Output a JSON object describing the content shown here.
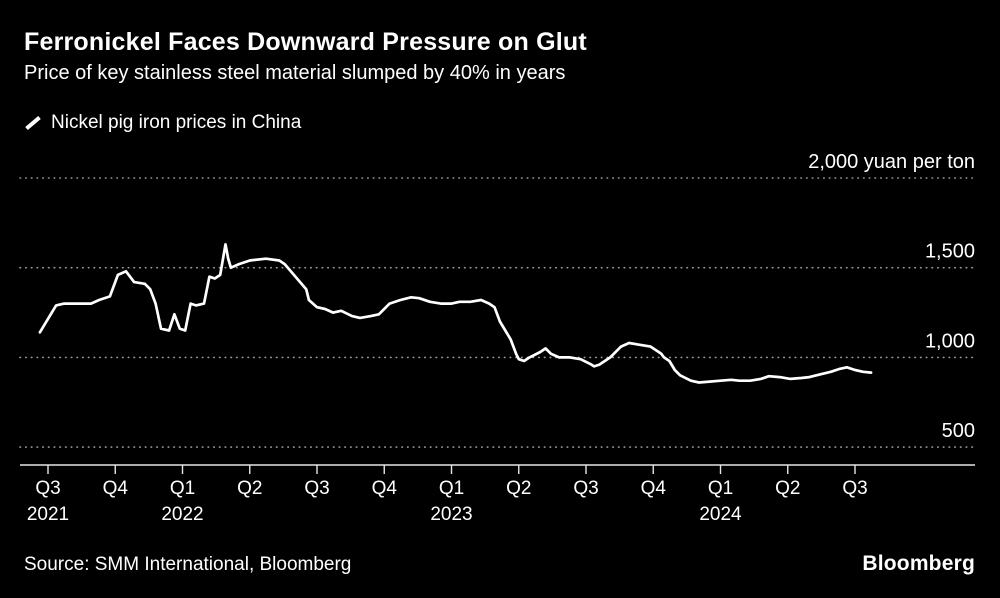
{
  "header": {
    "title": "Ferronickel Faces Downward Pressure on Glut",
    "subtitle": "Price of key stainless steel material slumped by 40% in years"
  },
  "legend": {
    "label": "Nickel pig iron prices in China"
  },
  "chart_data": {
    "type": "line",
    "title": "Ferronickel Faces Downward Pressure on Glut",
    "ylabel": "yuan per ton",
    "line_color": "#ffffff",
    "background": "#000000",
    "grid": "dotted horizontal",
    "xlim": [
      2021.42,
      2024.62
    ],
    "ylim": [
      500,
      2000
    ],
    "y_gridlines": [
      {
        "value": 2000,
        "label": "2,000 yuan per ton"
      },
      {
        "value": 1500,
        "label": "1,500"
      },
      {
        "value": 1000,
        "label": "1,000"
      },
      {
        "value": 500,
        "label": "500"
      }
    ],
    "x_ticks": [
      {
        "pos": 2021.5,
        "label": "Q3",
        "year": "2021"
      },
      {
        "pos": 2021.75,
        "label": "Q4",
        "year": ""
      },
      {
        "pos": 2022.0,
        "label": "Q1",
        "year": "2022"
      },
      {
        "pos": 2022.25,
        "label": "Q2",
        "year": ""
      },
      {
        "pos": 2022.5,
        "label": "Q3",
        "year": ""
      },
      {
        "pos": 2022.75,
        "label": "Q4",
        "year": ""
      },
      {
        "pos": 2023.0,
        "label": "Q1",
        "year": "2023"
      },
      {
        "pos": 2023.25,
        "label": "Q2",
        "year": ""
      },
      {
        "pos": 2023.5,
        "label": "Q3",
        "year": ""
      },
      {
        "pos": 2023.75,
        "label": "Q4",
        "year": ""
      },
      {
        "pos": 2024.0,
        "label": "Q1",
        "year": "2024"
      },
      {
        "pos": 2024.25,
        "label": "Q2",
        "year": ""
      },
      {
        "pos": 2024.5,
        "label": "Q3",
        "year": ""
      }
    ],
    "series": [
      {
        "name": "Nickel pig iron prices in China",
        "x": [
          2021.47,
          2021.53,
          2021.56,
          2021.66,
          2021.69,
          2021.73,
          2021.76,
          2021.79,
          2021.82,
          2021.86,
          2021.88,
          2021.9,
          2021.92,
          2021.95,
          2021.97,
          2021.99,
          2022.01,
          2022.03,
          2022.05,
          2022.08,
          2022.1,
          2022.12,
          2022.14,
          2022.16,
          2022.17,
          2022.18,
          2022.21,
          2022.25,
          2022.31,
          2022.36,
          2022.38,
          2022.42,
          2022.46,
          2022.47,
          2022.5,
          2022.53,
          2022.56,
          2022.59,
          2022.63,
          2022.66,
          2022.7,
          2022.73,
          2022.77,
          2022.81,
          2022.85,
          2022.88,
          2022.92,
          2022.96,
          2023.0,
          2023.03,
          2023.07,
          2023.11,
          2023.14,
          2023.16,
          2023.18,
          2023.2,
          2023.22,
          2023.24,
          2023.25,
          2023.27,
          2023.29,
          2023.33,
          2023.35,
          2023.37,
          2023.4,
          2023.44,
          2023.48,
          2023.52,
          2023.53,
          2023.55,
          2023.59,
          2023.63,
          2023.66,
          2023.7,
          2023.74,
          2023.78,
          2023.79,
          2023.81,
          2023.83,
          2023.85,
          2023.89,
          2023.92,
          2023.96,
          2024.0,
          2024.04,
          2024.07,
          2024.11,
          2024.15,
          2024.18,
          2024.22,
          2024.26,
          2024.3,
          2024.33,
          2024.37,
          2024.41,
          2024.44,
          2024.47,
          2024.5,
          2024.53,
          2024.56
        ],
        "values": [
          1140,
          1290,
          1300,
          1300,
          1320,
          1340,
          1460,
          1480,
          1420,
          1410,
          1380,
          1300,
          1160,
          1150,
          1240,
          1160,
          1150,
          1300,
          1290,
          1300,
          1450,
          1440,
          1460,
          1630,
          1550,
          1500,
          1520,
          1540,
          1550,
          1540,
          1520,
          1450,
          1380,
          1320,
          1280,
          1270,
          1250,
          1260,
          1230,
          1220,
          1230,
          1240,
          1300,
          1320,
          1335,
          1330,
          1310,
          1300,
          1300,
          1310,
          1310,
          1320,
          1300,
          1280,
          1200,
          1150,
          1100,
          1020,
          990,
          980,
          1000,
          1030,
          1050,
          1020,
          1000,
          1000,
          990,
          960,
          950,
          960,
          1000,
          1060,
          1080,
          1070,
          1060,
          1020,
          1000,
          980,
          930,
          900,
          870,
          860,
          865,
          870,
          875,
          870,
          870,
          880,
          895,
          890,
          880,
          885,
          890,
          905,
          920,
          935,
          945,
          930,
          920,
          915
        ]
      }
    ]
  },
  "footer": {
    "source": "Source: SMM International, Bloomberg",
    "brand": "Bloomberg"
  }
}
